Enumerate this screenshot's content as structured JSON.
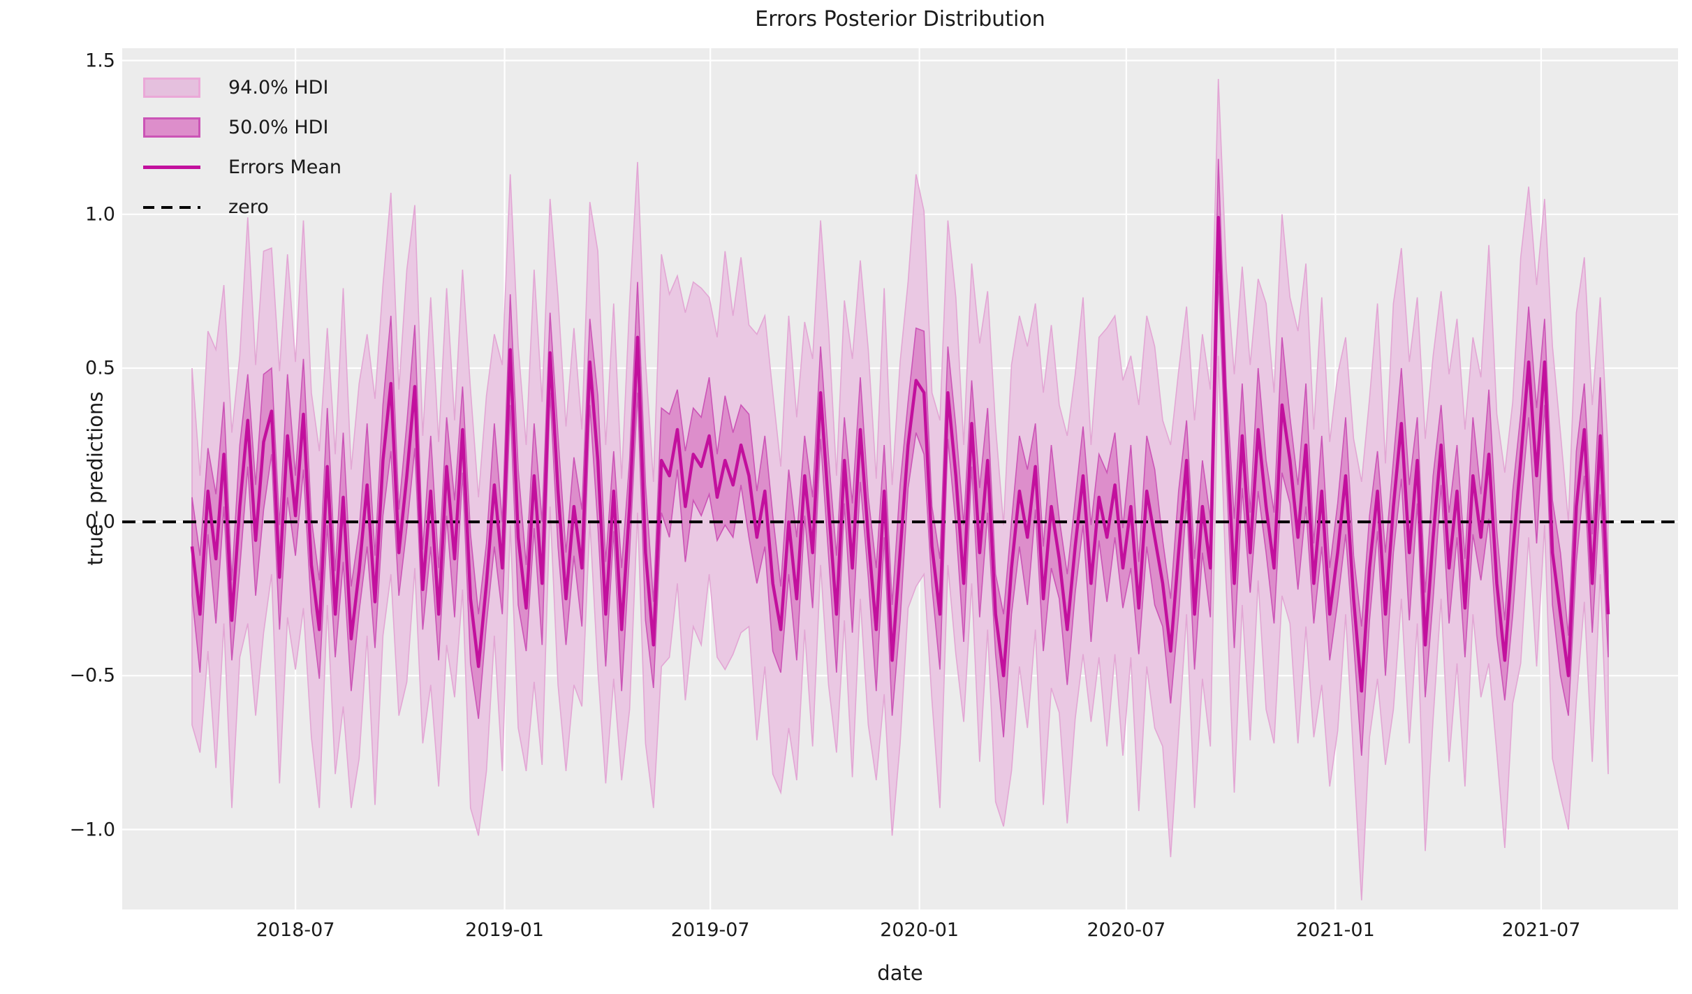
{
  "title": "Errors Posterior Distribution",
  "x_axis": {
    "label": "date",
    "ticks": [
      {
        "label": "2018-07",
        "date": "2018-07-01"
      },
      {
        "label": "2019-01",
        "date": "2019-01-01"
      },
      {
        "label": "2019-07",
        "date": "2019-07-01"
      },
      {
        "label": "2020-01",
        "date": "2020-01-01"
      },
      {
        "label": "2020-07",
        "date": "2020-07-01"
      },
      {
        "label": "2021-01",
        "date": "2021-01-01"
      },
      {
        "label": "2021-07",
        "date": "2021-07-01"
      }
    ]
  },
  "y_axis": {
    "label": "true - predictions",
    "ticks": [
      {
        "label": "1.5",
        "value": 1.5
      },
      {
        "label": "1.0",
        "value": 1.0
      },
      {
        "label": "0.5",
        "value": 0.5
      },
      {
        "label": "0.0",
        "value": 0.0
      },
      {
        "label": "−0.5",
        "value": -0.5
      },
      {
        "label": "−1.0",
        "value": -1.0
      }
    ]
  },
  "legend": {
    "items": [
      {
        "label": "94.0% HDI",
        "swatch": "patch-light"
      },
      {
        "label": "50.0% HDI",
        "swatch": "patch-mid"
      },
      {
        "label": "Errors Mean",
        "swatch": "solid-line"
      },
      {
        "label": "zero",
        "swatch": "dashed-line"
      }
    ]
  },
  "colors": {
    "background": "#ececec",
    "gridline": "#ffffff",
    "hdi94_fill": "#eac8e3",
    "hdi94_edge": "#e2a6d4",
    "hdi50_fill": "#dd8ecb",
    "hdi50_edge": "#cb54b6",
    "mean_line": "#c2109d",
    "zero_line": "#000000",
    "text": "#1a1a1a"
  },
  "chart_data": {
    "type": "line",
    "title": "Errors Posterior Distribution",
    "xlabel": "date",
    "ylabel": "true - predictions",
    "x_start_date": "2018-04-01",
    "x_end_date": "2021-08-29",
    "frequency": "weekly",
    "n_points": 179,
    "ylim": [
      -1.26,
      1.54
    ],
    "grid": "on",
    "legend_position": "upper-left-inside",
    "zero_reference_line": 0.0,
    "series": [
      {
        "name": "Errors Mean",
        "values": [
          -0.08,
          -0.3,
          0.1,
          -0.12,
          0.22,
          -0.32,
          0.05,
          0.33,
          -0.06,
          0.26,
          0.36,
          -0.18,
          0.28,
          0.02,
          0.35,
          -0.14,
          -0.35,
          0.18,
          -0.3,
          0.08,
          -0.38,
          -0.16,
          0.12,
          -0.26,
          0.2,
          0.45,
          -0.1,
          0.15,
          0.44,
          -0.22,
          0.1,
          -0.3,
          0.18,
          -0.12,
          0.3,
          -0.25,
          -0.47,
          -0.2,
          0.12,
          -0.15,
          0.56,
          -0.05,
          -0.28,
          0.15,
          -0.2,
          0.55,
          0.1,
          -0.25,
          0.05,
          -0.15,
          0.52,
          0.2,
          -0.3,
          0.1,
          -0.35,
          0.05,
          0.6,
          -0.1,
          -0.4,
          0.2,
          0.15,
          0.3,
          0.05,
          0.22,
          0.18,
          0.28,
          0.08,
          0.2,
          0.12,
          0.25,
          0.15,
          -0.05,
          0.1,
          -0.2,
          -0.35,
          0.0,
          -0.25,
          0.15,
          -0.1,
          0.42,
          0.05,
          -0.3,
          0.2,
          -0.15,
          0.3,
          -0.05,
          -0.35,
          0.1,
          -0.45,
          -0.1,
          0.25,
          0.46,
          0.42,
          -0.08,
          -0.3,
          0.42,
          0.15,
          -0.2,
          0.32,
          -0.1,
          0.2,
          -0.3,
          -0.5,
          -0.15,
          0.1,
          -0.05,
          0.18,
          -0.25,
          0.05,
          -0.12,
          -0.35,
          -0.08,
          0.15,
          -0.2,
          0.08,
          -0.05,
          0.12,
          -0.15,
          0.05,
          -0.28,
          0.1,
          -0.05,
          -0.2,
          -0.42,
          -0.1,
          0.2,
          -0.3,
          0.05,
          -0.15,
          0.99,
          0.3,
          -0.2,
          0.28,
          -0.1,
          0.3,
          0.05,
          -0.15,
          0.38,
          0.2,
          -0.05,
          0.25,
          -0.2,
          0.1,
          -0.3,
          -0.1,
          0.15,
          -0.25,
          -0.55,
          -0.15,
          0.1,
          -0.3,
          0.05,
          0.32,
          -0.1,
          0.2,
          -0.4,
          -0.05,
          0.25,
          -0.15,
          0.1,
          -0.28,
          0.15,
          -0.05,
          0.22,
          -0.2,
          -0.45,
          -0.1,
          0.2,
          0.52,
          0.15,
          0.52,
          -0.1,
          -0.3,
          -0.5,
          0.05,
          0.3,
          -0.2,
          0.28,
          -0.3
        ]
      },
      {
        "name": "50.0% HDI halfwidth (tiled pattern, centered on mean)",
        "values": [
          0.16,
          0.19,
          0.14,
          0.21,
          0.17,
          0.13,
          0.2,
          0.15,
          0.18,
          0.22,
          0.14,
          0.17,
          0.2,
          0.13,
          0.18,
          0.15
        ]
      },
      {
        "name": "94.0% HDI halfwidth (tiled pattern, centered on mean)",
        "values": [
          0.58,
          0.45,
          0.52,
          0.68,
          0.55,
          0.61,
          0.49,
          0.66,
          0.57,
          0.62,
          0.53,
          0.67,
          0.59,
          0.5,
          0.63,
          0.56
        ]
      }
    ]
  }
}
